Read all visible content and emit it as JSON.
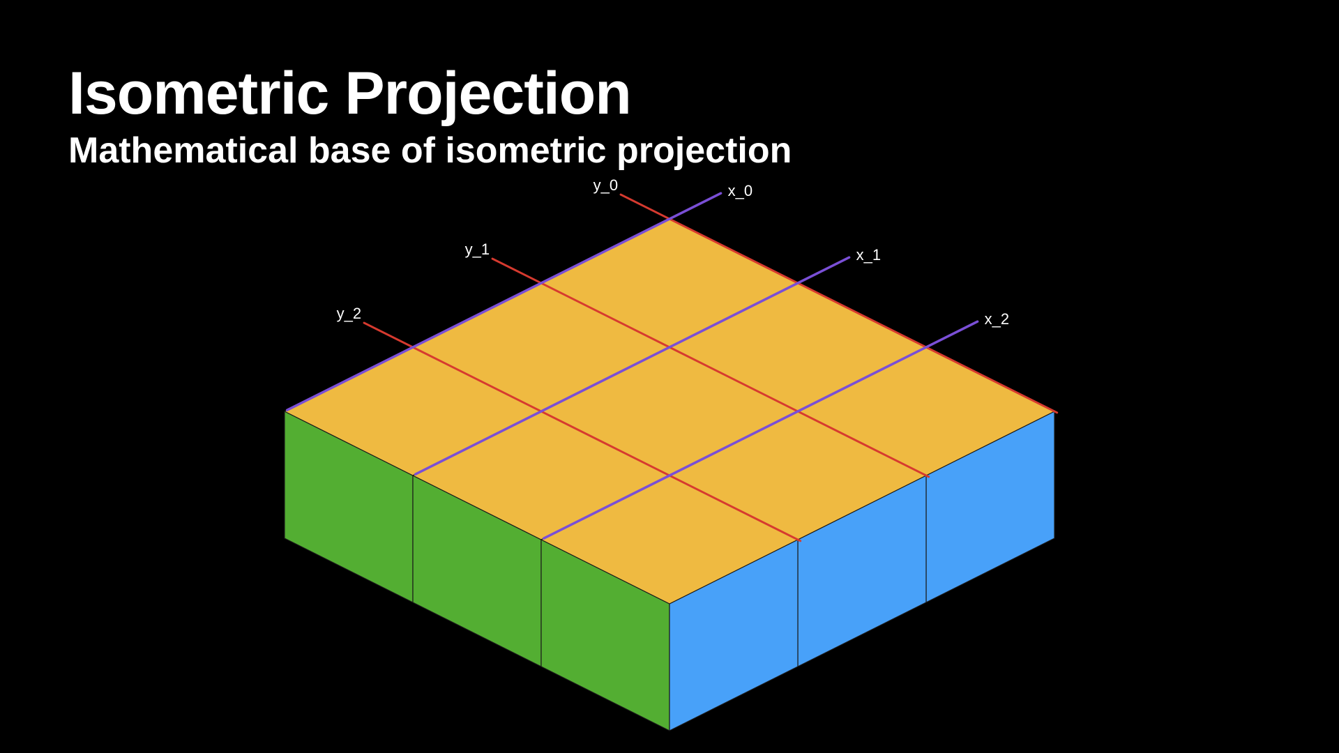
{
  "slide": {
    "title": "Isometric Projection",
    "subtitle": "Mathematical base of isometric projection"
  },
  "diagram": {
    "grid_size": 3,
    "labels": {
      "x": [
        "x_0",
        "x_1",
        "x_2"
      ],
      "y": [
        "y_0",
        "y_1",
        "y_2"
      ]
    },
    "colors": {
      "background": "#000000",
      "top": "#efba41",
      "left": "#53ae32",
      "right": "#48a1f9",
      "x_lines": "#7a4fd6",
      "y_lines": "#d63a2f",
      "text": "#ffffff"
    }
  }
}
